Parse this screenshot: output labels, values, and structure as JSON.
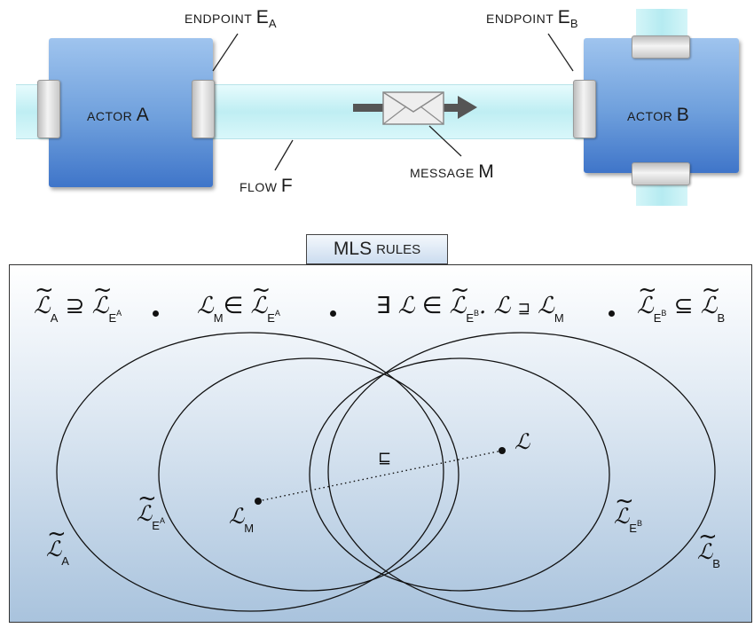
{
  "diagram": {
    "actor_a": {
      "prefix": "ACTOR",
      "id": "A"
    },
    "actor_b": {
      "prefix": "ACTOR",
      "id": "B"
    },
    "endpoint_a": {
      "prefix": "ENDPOINT",
      "letter": "E",
      "sub": "A"
    },
    "endpoint_b": {
      "prefix": "ENDPOINT",
      "letter": "E",
      "sub": "B"
    },
    "flow": {
      "prefix": "FLOW",
      "id": "F"
    },
    "message": {
      "prefix": "MESSAGE",
      "id": "M"
    },
    "colors": {
      "actor": "#5f93d6",
      "pipe": "#c8f1f5",
      "cap": "#d6d6d6"
    }
  },
  "rules": {
    "tab": {
      "main": "MLS",
      "small": "RULES"
    },
    "script_L": "ℒ",
    "sub_A": "A",
    "sub_B": "B",
    "sub_M": "M",
    "sub_E": "E",
    "sym_supseteq": "⊇",
    "sym_in": "∈",
    "sym_exists": "∃",
    "sym_sqsupseteq": "⊒",
    "sym_subseteq": "⊆",
    "sym_sqsubseteq": "⊑",
    "dot": "."
  }
}
